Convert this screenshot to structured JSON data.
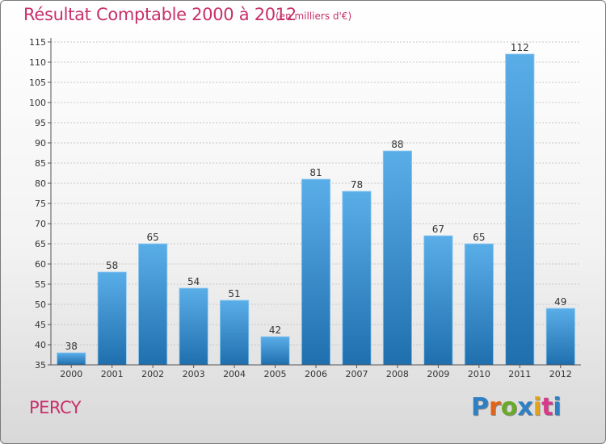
{
  "header": {
    "title": "Résultat Comptable 2000 à 2012",
    "subtitle": "(en milliers d'€)"
  },
  "footer": {
    "place": "PERCY",
    "logo_letters": [
      "P",
      "r",
      "o",
      "x",
      "i",
      "t",
      "i"
    ],
    "logo_colors": [
      "#2e7fc4",
      "#e0651b",
      "#6aaa2a",
      "#2e7fc4",
      "#e3a21a",
      "#d83a8a",
      "#2e7fc4"
    ]
  },
  "colors": {
    "bar_top": "#5aaee8",
    "bar_bottom": "#1f6fae",
    "text": "#333333",
    "grid": "#c8c8c8"
  },
  "chart_data": {
    "type": "bar",
    "title": "Résultat Comptable 2000 à 2012",
    "subtitle": "(en milliers d'€)",
    "xlabel": "",
    "ylabel": "",
    "categories": [
      "2000",
      "2001",
      "2002",
      "2003",
      "2004",
      "2005",
      "2006",
      "2007",
      "2008",
      "2009",
      "2010",
      "2011",
      "2012"
    ],
    "values": [
      38,
      58,
      65,
      54,
      51,
      42,
      81,
      78,
      88,
      67,
      65,
      112,
      49
    ],
    "ylim": [
      35,
      115
    ],
    "yticks": [
      35,
      40,
      45,
      50,
      55,
      60,
      65,
      70,
      75,
      80,
      85,
      90,
      95,
      100,
      105,
      110,
      115
    ],
    "grid": true
  }
}
